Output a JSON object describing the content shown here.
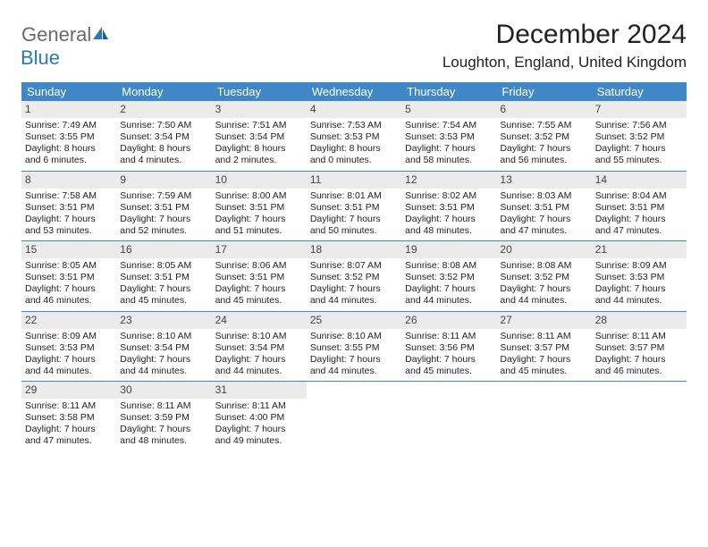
{
  "logo": {
    "text1": "General",
    "text2": "Blue"
  },
  "title": "December 2024",
  "location": "Loughton, England, United Kingdom",
  "colors": {
    "header_bg": "#3f87c7",
    "header_text": "#ffffff",
    "date_bar_bg": "#eceaea",
    "week_divider": "#3f87c7",
    "logo_gray": "#6a6a6a",
    "logo_blue": "#2d78bd"
  },
  "day_names": [
    "Sunday",
    "Monday",
    "Tuesday",
    "Wednesday",
    "Thursday",
    "Friday",
    "Saturday"
  ],
  "weeks": [
    [
      {
        "date": "1",
        "sunrise": "Sunrise: 7:49 AM",
        "sunset": "Sunset: 3:55 PM",
        "daylight": "Daylight: 8 hours and 6 minutes."
      },
      {
        "date": "2",
        "sunrise": "Sunrise: 7:50 AM",
        "sunset": "Sunset: 3:54 PM",
        "daylight": "Daylight: 8 hours and 4 minutes."
      },
      {
        "date": "3",
        "sunrise": "Sunrise: 7:51 AM",
        "sunset": "Sunset: 3:54 PM",
        "daylight": "Daylight: 8 hours and 2 minutes."
      },
      {
        "date": "4",
        "sunrise": "Sunrise: 7:53 AM",
        "sunset": "Sunset: 3:53 PM",
        "daylight": "Daylight: 8 hours and 0 minutes."
      },
      {
        "date": "5",
        "sunrise": "Sunrise: 7:54 AM",
        "sunset": "Sunset: 3:53 PM",
        "daylight": "Daylight: 7 hours and 58 minutes."
      },
      {
        "date": "6",
        "sunrise": "Sunrise: 7:55 AM",
        "sunset": "Sunset: 3:52 PM",
        "daylight": "Daylight: 7 hours and 56 minutes."
      },
      {
        "date": "7",
        "sunrise": "Sunrise: 7:56 AM",
        "sunset": "Sunset: 3:52 PM",
        "daylight": "Daylight: 7 hours and 55 minutes."
      }
    ],
    [
      {
        "date": "8",
        "sunrise": "Sunrise: 7:58 AM",
        "sunset": "Sunset: 3:51 PM",
        "daylight": "Daylight: 7 hours and 53 minutes."
      },
      {
        "date": "9",
        "sunrise": "Sunrise: 7:59 AM",
        "sunset": "Sunset: 3:51 PM",
        "daylight": "Daylight: 7 hours and 52 minutes."
      },
      {
        "date": "10",
        "sunrise": "Sunrise: 8:00 AM",
        "sunset": "Sunset: 3:51 PM",
        "daylight": "Daylight: 7 hours and 51 minutes."
      },
      {
        "date": "11",
        "sunrise": "Sunrise: 8:01 AM",
        "sunset": "Sunset: 3:51 PM",
        "daylight": "Daylight: 7 hours and 50 minutes."
      },
      {
        "date": "12",
        "sunrise": "Sunrise: 8:02 AM",
        "sunset": "Sunset: 3:51 PM",
        "daylight": "Daylight: 7 hours and 48 minutes."
      },
      {
        "date": "13",
        "sunrise": "Sunrise: 8:03 AM",
        "sunset": "Sunset: 3:51 PM",
        "daylight": "Daylight: 7 hours and 47 minutes."
      },
      {
        "date": "14",
        "sunrise": "Sunrise: 8:04 AM",
        "sunset": "Sunset: 3:51 PM",
        "daylight": "Daylight: 7 hours and 47 minutes."
      }
    ],
    [
      {
        "date": "15",
        "sunrise": "Sunrise: 8:05 AM",
        "sunset": "Sunset: 3:51 PM",
        "daylight": "Daylight: 7 hours and 46 minutes."
      },
      {
        "date": "16",
        "sunrise": "Sunrise: 8:05 AM",
        "sunset": "Sunset: 3:51 PM",
        "daylight": "Daylight: 7 hours and 45 minutes."
      },
      {
        "date": "17",
        "sunrise": "Sunrise: 8:06 AM",
        "sunset": "Sunset: 3:51 PM",
        "daylight": "Daylight: 7 hours and 45 minutes."
      },
      {
        "date": "18",
        "sunrise": "Sunrise: 8:07 AM",
        "sunset": "Sunset: 3:52 PM",
        "daylight": "Daylight: 7 hours and 44 minutes."
      },
      {
        "date": "19",
        "sunrise": "Sunrise: 8:08 AM",
        "sunset": "Sunset: 3:52 PM",
        "daylight": "Daylight: 7 hours and 44 minutes."
      },
      {
        "date": "20",
        "sunrise": "Sunrise: 8:08 AM",
        "sunset": "Sunset: 3:52 PM",
        "daylight": "Daylight: 7 hours and 44 minutes."
      },
      {
        "date": "21",
        "sunrise": "Sunrise: 8:09 AM",
        "sunset": "Sunset: 3:53 PM",
        "daylight": "Daylight: 7 hours and 44 minutes."
      }
    ],
    [
      {
        "date": "22",
        "sunrise": "Sunrise: 8:09 AM",
        "sunset": "Sunset: 3:53 PM",
        "daylight": "Daylight: 7 hours and 44 minutes."
      },
      {
        "date": "23",
        "sunrise": "Sunrise: 8:10 AM",
        "sunset": "Sunset: 3:54 PM",
        "daylight": "Daylight: 7 hours and 44 minutes."
      },
      {
        "date": "24",
        "sunrise": "Sunrise: 8:10 AM",
        "sunset": "Sunset: 3:54 PM",
        "daylight": "Daylight: 7 hours and 44 minutes."
      },
      {
        "date": "25",
        "sunrise": "Sunrise: 8:10 AM",
        "sunset": "Sunset: 3:55 PM",
        "daylight": "Daylight: 7 hours and 44 minutes."
      },
      {
        "date": "26",
        "sunrise": "Sunrise: 8:11 AM",
        "sunset": "Sunset: 3:56 PM",
        "daylight": "Daylight: 7 hours and 45 minutes."
      },
      {
        "date": "27",
        "sunrise": "Sunrise: 8:11 AM",
        "sunset": "Sunset: 3:57 PM",
        "daylight": "Daylight: 7 hours and 45 minutes."
      },
      {
        "date": "28",
        "sunrise": "Sunrise: 8:11 AM",
        "sunset": "Sunset: 3:57 PM",
        "daylight": "Daylight: 7 hours and 46 minutes."
      }
    ],
    [
      {
        "date": "29",
        "sunrise": "Sunrise: 8:11 AM",
        "sunset": "Sunset: 3:58 PM",
        "daylight": "Daylight: 7 hours and 47 minutes."
      },
      {
        "date": "30",
        "sunrise": "Sunrise: 8:11 AM",
        "sunset": "Sunset: 3:59 PM",
        "daylight": "Daylight: 7 hours and 48 minutes."
      },
      {
        "date": "31",
        "sunrise": "Sunrise: 8:11 AM",
        "sunset": "Sunset: 4:00 PM",
        "daylight": "Daylight: 7 hours and 49 minutes."
      },
      null,
      null,
      null,
      null
    ]
  ]
}
